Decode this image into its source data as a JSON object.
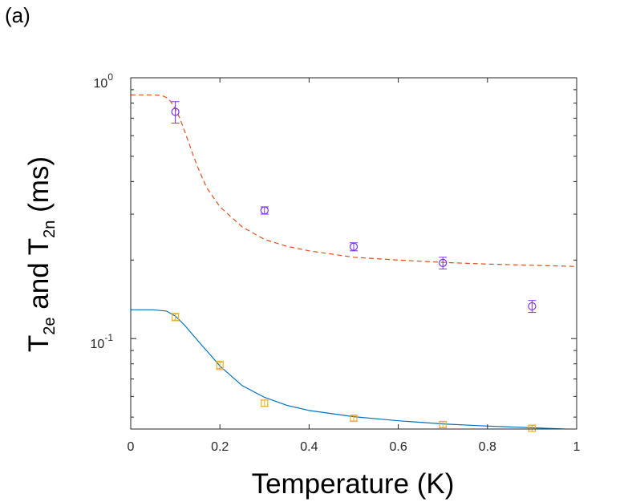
{
  "panel_label": "(a)",
  "chart_data": {
    "type": "scatter",
    "xlabel": "Temperature (K)",
    "ylabel": {
      "base": "T",
      "sub1": "2e",
      "mid": " and T",
      "sub2": "2n",
      "unit": " (ms)"
    },
    "xlim": [
      0,
      1
    ],
    "ylim": [
      0.045,
      1.0
    ],
    "yscale": "log",
    "x_ticks": [
      0,
      0.2,
      0.4,
      0.6,
      0.8,
      1
    ],
    "x_tick_labels": [
      "0",
      "0.2",
      "0.4",
      "0.6",
      "0.8",
      "1"
    ],
    "y_tick_labels": [
      {
        "value": 1.0,
        "base": "10",
        "exp": "0"
      },
      {
        "value": 0.1,
        "base": "10",
        "exp": "-1"
      }
    ],
    "grid": false,
    "series": [
      {
        "marker": "circle",
        "color": "#7B2FF2",
        "x": [
          0.1,
          0.3,
          0.5,
          0.7,
          0.9
        ],
        "y": [
          0.74,
          0.31,
          0.225,
          0.195,
          0.133
        ],
        "err": [
          0.07,
          0.01,
          0.008,
          0.01,
          0.007
        ]
      },
      {
        "marker": "square",
        "color": "#EDB120",
        "x": [
          0.1,
          0.2,
          0.3,
          0.5,
          0.7,
          0.9
        ],
        "y": [
          0.121,
          0.079,
          0.0565,
          0.0495,
          0.0468,
          0.0453
        ],
        "err": [
          0.004,
          0.003,
          0.0015,
          0.0012,
          0.0012,
          0.0012
        ]
      }
    ],
    "fits": [
      {
        "style": "dashed",
        "color": "#D95319",
        "x": [
          0,
          0.05,
          0.07,
          0.08,
          0.09,
          0.1,
          0.11,
          0.12,
          0.13,
          0.14,
          0.15,
          0.17,
          0.2,
          0.25,
          0.3,
          0.35,
          0.4,
          0.5,
          0.6,
          0.7,
          0.8,
          0.9,
          1.0
        ],
        "y": [
          0.86,
          0.86,
          0.855,
          0.84,
          0.81,
          0.76,
          0.7,
          0.63,
          0.565,
          0.505,
          0.455,
          0.38,
          0.32,
          0.268,
          0.24,
          0.226,
          0.217,
          0.205,
          0.2,
          0.196,
          0.193,
          0.191,
          0.189
        ]
      },
      {
        "style": "solid",
        "color": "#0072BD",
        "x": [
          0,
          0.05,
          0.08,
          0.1,
          0.12,
          0.14,
          0.16,
          0.18,
          0.2,
          0.25,
          0.3,
          0.35,
          0.4,
          0.5,
          0.6,
          0.7,
          0.8,
          0.9,
          1.0
        ],
        "y": [
          0.129,
          0.129,
          0.1275,
          0.122,
          0.113,
          0.103,
          0.094,
          0.086,
          0.0785,
          0.066,
          0.0595,
          0.0555,
          0.053,
          0.0502,
          0.0484,
          0.0471,
          0.0462,
          0.0455,
          0.0448
        ]
      }
    ]
  }
}
